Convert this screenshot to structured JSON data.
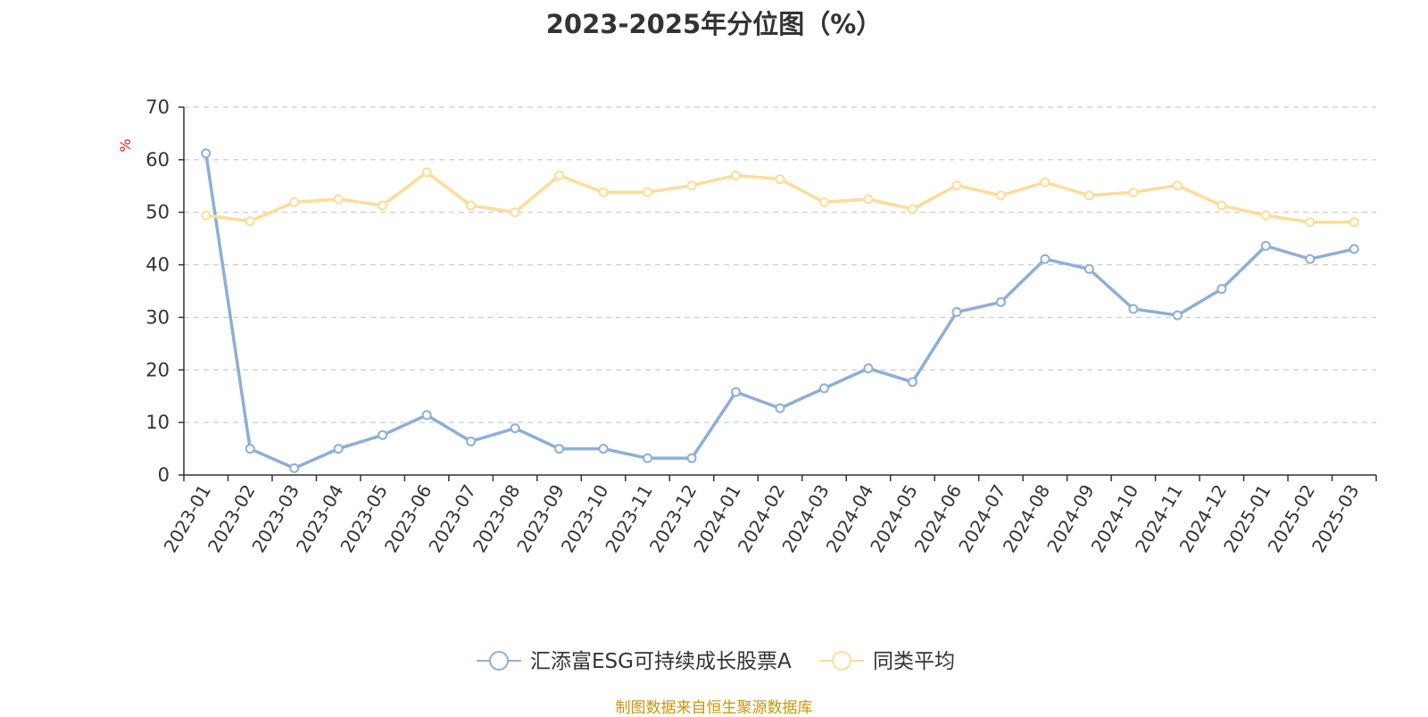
{
  "chart_data": {
    "type": "line",
    "title": "2023-2025年分位图（%）",
    "ylabel": "%",
    "xlabel": "",
    "ylim": [
      0,
      70
    ],
    "yticks": [
      0,
      10,
      20,
      30,
      40,
      50,
      60,
      70
    ],
    "grid": true,
    "legend_position": "bottom",
    "categories": [
      "2023-01",
      "2023-02",
      "2023-03",
      "2023-04",
      "2023-05",
      "2023-06",
      "2023-07",
      "2023-08",
      "2023-09",
      "2023-10",
      "2023-11",
      "2023-12",
      "2024-01",
      "2024-02",
      "2024-03",
      "2024-04",
      "2024-05",
      "2024-06",
      "2024-07",
      "2024-08",
      "2024-09",
      "2024-10",
      "2024-11",
      "2024-12",
      "2025-01",
      "2025-02",
      "2025-03"
    ],
    "series": [
      {
        "name": "汇添富ESG可持续成长股票A",
        "color": "#8eaed9",
        "values": [
          61.2,
          5.0,
          1.3,
          5.0,
          7.6,
          11.4,
          6.4,
          8.9,
          5.0,
          5.0,
          3.2,
          3.2,
          15.8,
          12.7,
          16.5,
          20.3,
          17.7,
          31.0,
          32.9,
          41.1,
          39.2,
          31.6,
          30.4,
          35.4,
          43.6,
          41.1,
          43.0
        ]
      },
      {
        "name": "同类平均",
        "color": "#fddc9a",
        "values": [
          49.4,
          48.3,
          51.9,
          52.5,
          51.3,
          57.6,
          51.3,
          50.0,
          57.0,
          53.8,
          53.8,
          55.1,
          57.0,
          56.3,
          51.9,
          52.5,
          50.6,
          55.1,
          53.2,
          55.7,
          53.2,
          53.8,
          55.1,
          51.3,
          49.4,
          48.1,
          48.1
        ]
      }
    ]
  },
  "source_note": "制图数据来自恒生聚源数据库"
}
